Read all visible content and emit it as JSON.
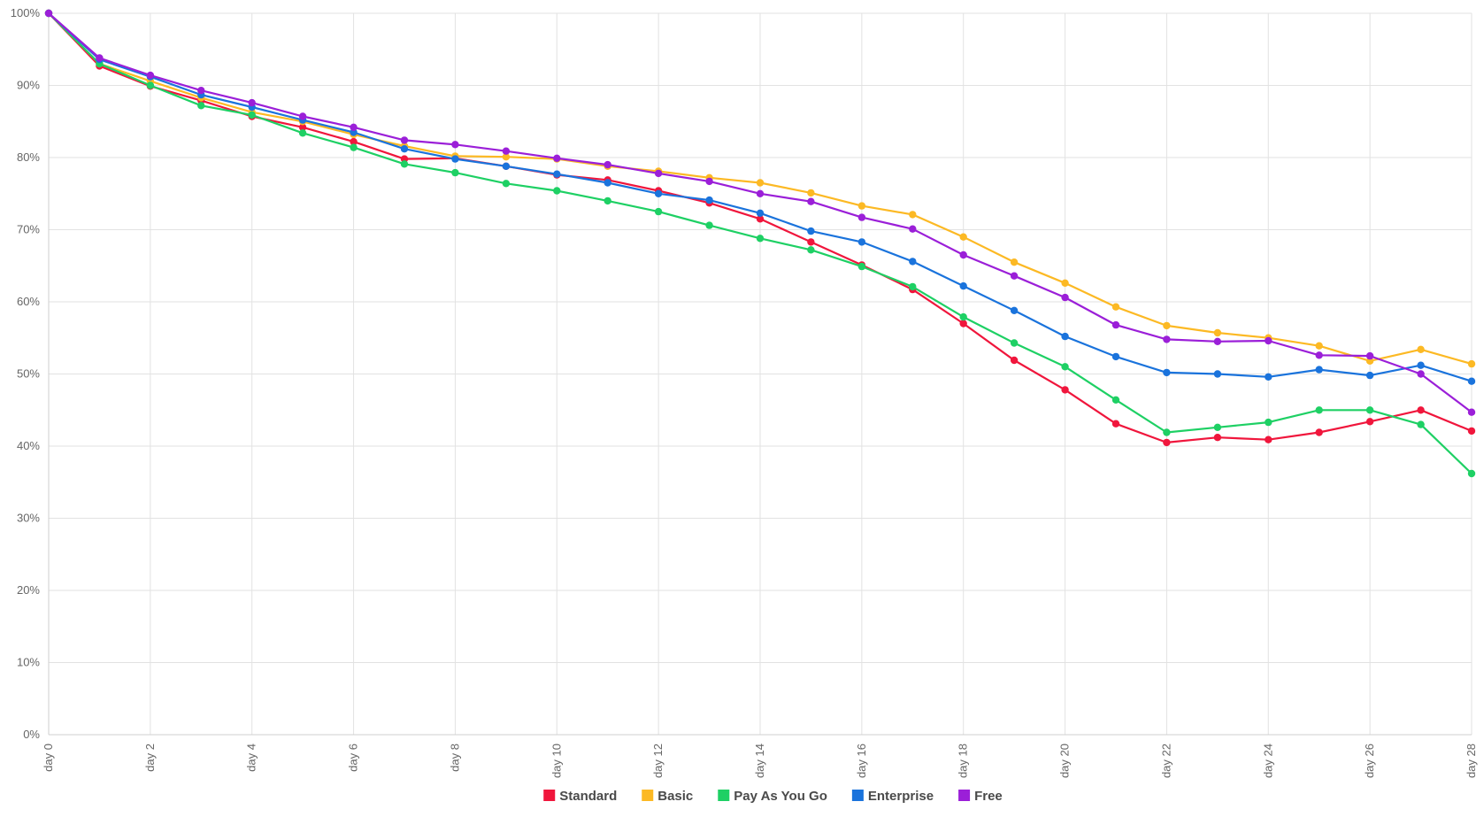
{
  "chart_data": {
    "type": "line",
    "title": "",
    "xlabel": "",
    "ylabel": "",
    "ylim": [
      0,
      100
    ],
    "y_ticks": [
      0,
      10,
      20,
      30,
      40,
      50,
      60,
      70,
      80,
      90,
      100
    ],
    "y_tick_labels": [
      "0%",
      "10%",
      "20%",
      "30%",
      "40%",
      "50%",
      "60%",
      "70%",
      "80%",
      "90%",
      "100%"
    ],
    "x": [
      0,
      1,
      2,
      3,
      4,
      5,
      6,
      7,
      8,
      9,
      10,
      11,
      12,
      13,
      14,
      15,
      16,
      17,
      18,
      19,
      20,
      21,
      22,
      23,
      24,
      25,
      26,
      27,
      28
    ],
    "x_ticks": [
      0,
      2,
      4,
      6,
      8,
      10,
      12,
      14,
      16,
      18,
      20,
      22,
      24,
      26,
      28
    ],
    "x_tick_labels": [
      "day 0",
      "day 2",
      "day 4",
      "day 6",
      "day 8",
      "day 10",
      "day 12",
      "day 14",
      "day 16",
      "day 18",
      "day 20",
      "day 22",
      "day 24",
      "day 26",
      "day 28"
    ],
    "grid": true,
    "legend_position": "bottom",
    "series": [
      {
        "name": "Standard",
        "color": "#f0163c",
        "values": [
          100,
          92.7,
          89.9,
          87.9,
          85.7,
          84.2,
          82.2,
          79.8,
          79.9,
          78.8,
          77.6,
          76.9,
          75.4,
          73.7,
          71.5,
          68.3,
          65.1,
          61.7,
          57.0,
          51.9,
          47.8,
          43.1,
          40.5,
          41.2,
          40.9,
          41.9,
          43.4,
          45.0,
          42.1
        ]
      },
      {
        "name": "Basic",
        "color": "#fcb924",
        "values": [
          100,
          93.0,
          90.6,
          88.3,
          86.3,
          85.0,
          83.2,
          81.6,
          80.2,
          80.1,
          79.8,
          78.8,
          78.1,
          77.2,
          76.5,
          75.1,
          73.3,
          72.1,
          69.0,
          65.5,
          62.6,
          59.3,
          56.7,
          55.7,
          55.0,
          53.9,
          51.8,
          53.4,
          51.4
        ]
      },
      {
        "name": "Pay As You Go",
        "color": "#1ed064",
        "values": [
          100,
          93.0,
          90.0,
          87.2,
          85.9,
          83.4,
          81.4,
          79.1,
          77.9,
          76.4,
          75.4,
          74.0,
          72.5,
          70.6,
          68.8,
          67.2,
          64.9,
          62.1,
          57.9,
          54.3,
          51.0,
          46.4,
          41.9,
          42.6,
          43.3,
          45.0,
          45.0,
          43.0,
          36.2
        ]
      },
      {
        "name": "Enterprise",
        "color": "#1a73dc",
        "values": [
          100,
          93.6,
          91.2,
          88.7,
          87.0,
          85.2,
          83.5,
          81.2,
          79.8,
          78.8,
          77.7,
          76.5,
          75.0,
          74.1,
          72.3,
          69.8,
          68.3,
          65.6,
          62.2,
          58.8,
          55.2,
          52.4,
          50.2,
          50.0,
          49.6,
          50.6,
          49.8,
          51.2,
          49.0
        ]
      },
      {
        "name": "Free",
        "color": "#9b1fd8",
        "values": [
          100,
          93.8,
          91.4,
          89.3,
          87.6,
          85.7,
          84.2,
          82.4,
          81.8,
          80.9,
          79.9,
          79.0,
          77.8,
          76.7,
          75.0,
          73.9,
          71.7,
          70.1,
          66.5,
          63.6,
          60.6,
          56.8,
          54.8,
          54.5,
          54.6,
          52.6,
          52.5,
          50.0,
          44.7
        ]
      }
    ]
  }
}
